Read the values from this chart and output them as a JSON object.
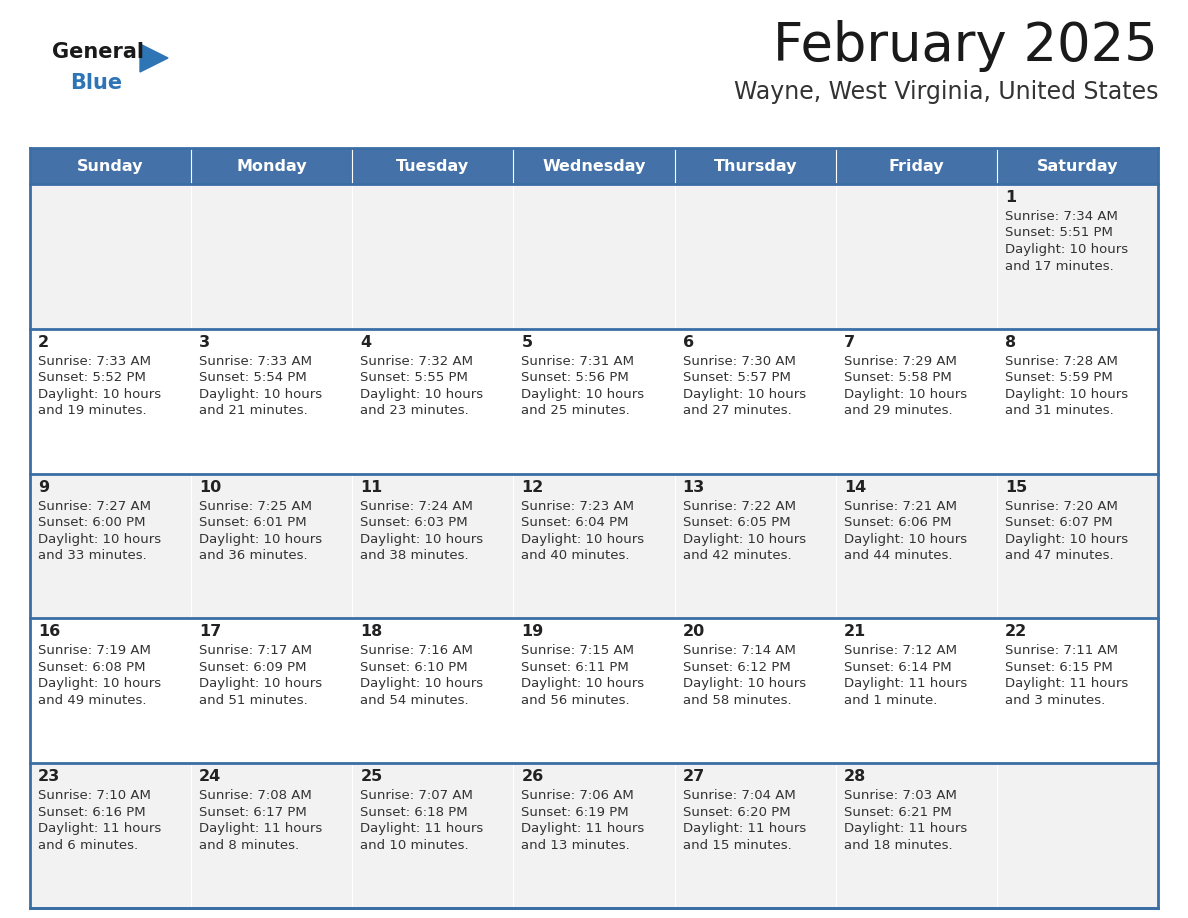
{
  "title": "February 2025",
  "subtitle": "Wayne, West Virginia, United States",
  "header_bg": "#4472A8",
  "header_text": "#FFFFFF",
  "cell_bg_odd": "#F2F2F2",
  "cell_bg_even": "#FFFFFF",
  "border_color": "#3A6EA5",
  "days_of_week": [
    "Sunday",
    "Monday",
    "Tuesday",
    "Wednesday",
    "Thursday",
    "Friday",
    "Saturday"
  ],
  "title_color": "#1a1a1a",
  "subtitle_color": "#333333",
  "day_num_color": "#222222",
  "info_color": "#333333",
  "calendar": [
    [
      null,
      null,
      null,
      null,
      null,
      null,
      {
        "day": 1,
        "sunrise": "Sunrise: 7:34 AM",
        "sunset": "Sunset: 5:51 PM",
        "daylight": "Daylight: 10 hours",
        "daylight2": "and 17 minutes."
      }
    ],
    [
      {
        "day": 2,
        "sunrise": "Sunrise: 7:33 AM",
        "sunset": "Sunset: 5:52 PM",
        "daylight": "Daylight: 10 hours",
        "daylight2": "and 19 minutes."
      },
      {
        "day": 3,
        "sunrise": "Sunrise: 7:33 AM",
        "sunset": "Sunset: 5:54 PM",
        "daylight": "Daylight: 10 hours",
        "daylight2": "and 21 minutes."
      },
      {
        "day": 4,
        "sunrise": "Sunrise: 7:32 AM",
        "sunset": "Sunset: 5:55 PM",
        "daylight": "Daylight: 10 hours",
        "daylight2": "and 23 minutes."
      },
      {
        "day": 5,
        "sunrise": "Sunrise: 7:31 AM",
        "sunset": "Sunset: 5:56 PM",
        "daylight": "Daylight: 10 hours",
        "daylight2": "and 25 minutes."
      },
      {
        "day": 6,
        "sunrise": "Sunrise: 7:30 AM",
        "sunset": "Sunset: 5:57 PM",
        "daylight": "Daylight: 10 hours",
        "daylight2": "and 27 minutes."
      },
      {
        "day": 7,
        "sunrise": "Sunrise: 7:29 AM",
        "sunset": "Sunset: 5:58 PM",
        "daylight": "Daylight: 10 hours",
        "daylight2": "and 29 minutes."
      },
      {
        "day": 8,
        "sunrise": "Sunrise: 7:28 AM",
        "sunset": "Sunset: 5:59 PM",
        "daylight": "Daylight: 10 hours",
        "daylight2": "and 31 minutes."
      }
    ],
    [
      {
        "day": 9,
        "sunrise": "Sunrise: 7:27 AM",
        "sunset": "Sunset: 6:00 PM",
        "daylight": "Daylight: 10 hours",
        "daylight2": "and 33 minutes."
      },
      {
        "day": 10,
        "sunrise": "Sunrise: 7:25 AM",
        "sunset": "Sunset: 6:01 PM",
        "daylight": "Daylight: 10 hours",
        "daylight2": "and 36 minutes."
      },
      {
        "day": 11,
        "sunrise": "Sunrise: 7:24 AM",
        "sunset": "Sunset: 6:03 PM",
        "daylight": "Daylight: 10 hours",
        "daylight2": "and 38 minutes."
      },
      {
        "day": 12,
        "sunrise": "Sunrise: 7:23 AM",
        "sunset": "Sunset: 6:04 PM",
        "daylight": "Daylight: 10 hours",
        "daylight2": "and 40 minutes."
      },
      {
        "day": 13,
        "sunrise": "Sunrise: 7:22 AM",
        "sunset": "Sunset: 6:05 PM",
        "daylight": "Daylight: 10 hours",
        "daylight2": "and 42 minutes."
      },
      {
        "day": 14,
        "sunrise": "Sunrise: 7:21 AM",
        "sunset": "Sunset: 6:06 PM",
        "daylight": "Daylight: 10 hours",
        "daylight2": "and 44 minutes."
      },
      {
        "day": 15,
        "sunrise": "Sunrise: 7:20 AM",
        "sunset": "Sunset: 6:07 PM",
        "daylight": "Daylight: 10 hours",
        "daylight2": "and 47 minutes."
      }
    ],
    [
      {
        "day": 16,
        "sunrise": "Sunrise: 7:19 AM",
        "sunset": "Sunset: 6:08 PM",
        "daylight": "Daylight: 10 hours",
        "daylight2": "and 49 minutes."
      },
      {
        "day": 17,
        "sunrise": "Sunrise: 7:17 AM",
        "sunset": "Sunset: 6:09 PM",
        "daylight": "Daylight: 10 hours",
        "daylight2": "and 51 minutes."
      },
      {
        "day": 18,
        "sunrise": "Sunrise: 7:16 AM",
        "sunset": "Sunset: 6:10 PM",
        "daylight": "Daylight: 10 hours",
        "daylight2": "and 54 minutes."
      },
      {
        "day": 19,
        "sunrise": "Sunrise: 7:15 AM",
        "sunset": "Sunset: 6:11 PM",
        "daylight": "Daylight: 10 hours",
        "daylight2": "and 56 minutes."
      },
      {
        "day": 20,
        "sunrise": "Sunrise: 7:14 AM",
        "sunset": "Sunset: 6:12 PM",
        "daylight": "Daylight: 10 hours",
        "daylight2": "and 58 minutes."
      },
      {
        "day": 21,
        "sunrise": "Sunrise: 7:12 AM",
        "sunset": "Sunset: 6:14 PM",
        "daylight": "Daylight: 11 hours",
        "daylight2": "and 1 minute."
      },
      {
        "day": 22,
        "sunrise": "Sunrise: 7:11 AM",
        "sunset": "Sunset: 6:15 PM",
        "daylight": "Daylight: 11 hours",
        "daylight2": "and 3 minutes."
      }
    ],
    [
      {
        "day": 23,
        "sunrise": "Sunrise: 7:10 AM",
        "sunset": "Sunset: 6:16 PM",
        "daylight": "Daylight: 11 hours",
        "daylight2": "and 6 minutes."
      },
      {
        "day": 24,
        "sunrise": "Sunrise: 7:08 AM",
        "sunset": "Sunset: 6:17 PM",
        "daylight": "Daylight: 11 hours",
        "daylight2": "and 8 minutes."
      },
      {
        "day": 25,
        "sunrise": "Sunrise: 7:07 AM",
        "sunset": "Sunset: 6:18 PM",
        "daylight": "Daylight: 11 hours",
        "daylight2": "and 10 minutes."
      },
      {
        "day": 26,
        "sunrise": "Sunrise: 7:06 AM",
        "sunset": "Sunset: 6:19 PM",
        "daylight": "Daylight: 11 hours",
        "daylight2": "and 13 minutes."
      },
      {
        "day": 27,
        "sunrise": "Sunrise: 7:04 AM",
        "sunset": "Sunset: 6:20 PM",
        "daylight": "Daylight: 11 hours",
        "daylight2": "and 15 minutes."
      },
      {
        "day": 28,
        "sunrise": "Sunrise: 7:03 AM",
        "sunset": "Sunset: 6:21 PM",
        "daylight": "Daylight: 11 hours",
        "daylight2": "and 18 minutes."
      },
      null
    ]
  ],
  "logo_triangle_color": "#2E75B6"
}
